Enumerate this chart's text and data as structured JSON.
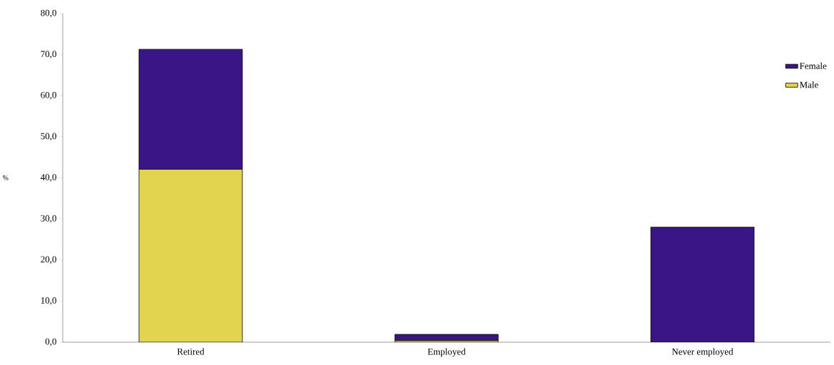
{
  "chart_data": {
    "type": "bar",
    "stacked": true,
    "ylabel": "%",
    "categories": [
      "Retired",
      "Employed",
      "Never employed"
    ],
    "series": [
      {
        "name": "Male",
        "color": "#e3d44f",
        "values": [
          42.1,
          0.4,
          0
        ]
      },
      {
        "name": "Female",
        "color": "#3a1684",
        "values": [
          29.2,
          1.5,
          28.0
        ]
      }
    ],
    "ylim": [
      0,
      80
    ],
    "yticks": [
      {
        "value": 0,
        "label": "0,0"
      },
      {
        "value": 10,
        "label": "10,0"
      },
      {
        "value": 20,
        "label": "20,0"
      },
      {
        "value": 30,
        "label": "30,0"
      },
      {
        "value": 40,
        "label": "40,0"
      },
      {
        "value": 50,
        "label": "50,0"
      },
      {
        "value": 60,
        "label": "60,0"
      },
      {
        "value": 70,
        "label": "70,0"
      },
      {
        "value": 80,
        "label": "80,0"
      }
    ],
    "legend": "top right"
  }
}
